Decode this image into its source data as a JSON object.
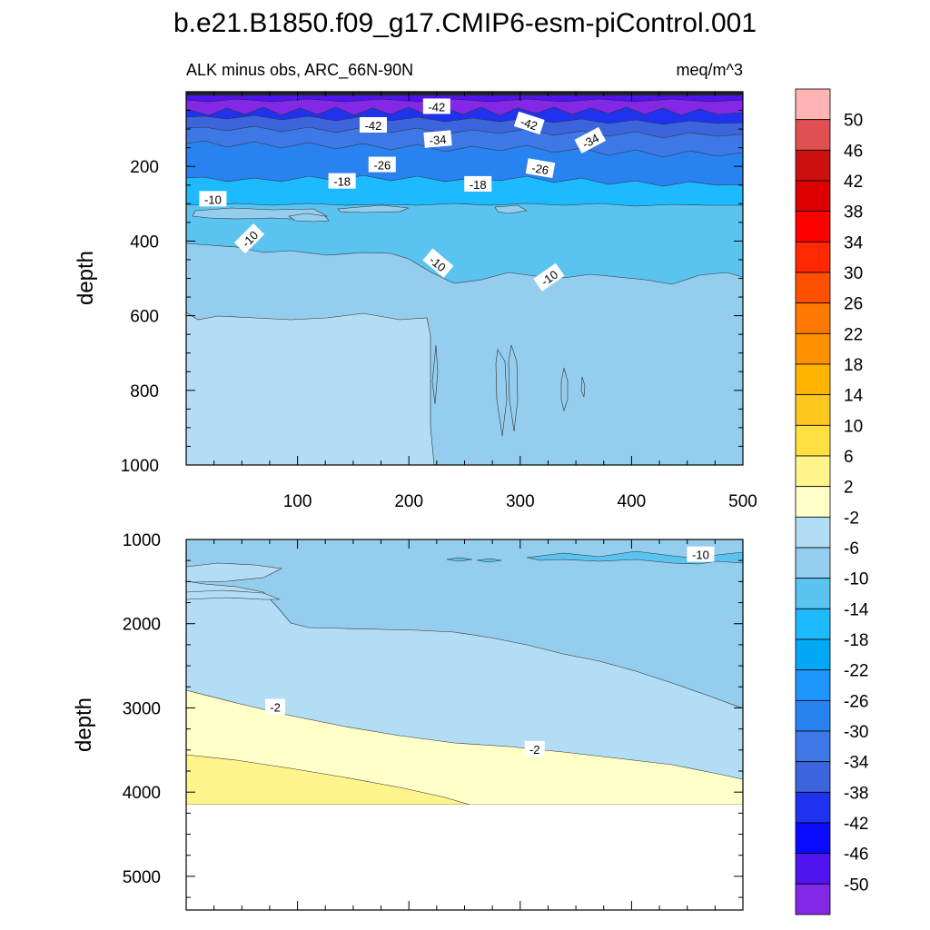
{
  "chart_data": [
    {
      "type": "heatmap",
      "panel": "upper",
      "title": "b.e21.B1850.f09_g17.CMIP6-esm-piControl.001",
      "subtitle_left": "ALK minus obs, ARC_66N-90N",
      "subtitle_right": "meq/m^3",
      "xlabel": "",
      "ylabel": "depth",
      "xlim": [
        0,
        500
      ],
      "ylim": [
        1000,
        0
      ],
      "x_ticks": [
        100,
        200,
        300,
        400,
        500
      ],
      "y_ticks": [
        200,
        400,
        600,
        800,
        1000
      ],
      "contour_labels": [
        {
          "x": 225,
          "y": 40,
          "text": "-42"
        },
        {
          "x": 168,
          "y": 90,
          "text": "-42"
        },
        {
          "x": 308,
          "y": 85,
          "text": "-42"
        },
        {
          "x": 226,
          "y": 128,
          "text": "-34"
        },
        {
          "x": 363,
          "y": 131,
          "text": "-34"
        },
        {
          "x": 176,
          "y": 196,
          "text": "-26"
        },
        {
          "x": 318,
          "y": 206,
          "text": "-26"
        },
        {
          "x": 140,
          "y": 240,
          "text": "-18"
        },
        {
          "x": 262,
          "y": 248,
          "text": "-18"
        },
        {
          "x": 24,
          "y": 288,
          "text": "-10"
        },
        {
          "x": 57,
          "y": 394,
          "text": "-10"
        },
        {
          "x": 226,
          "y": 460,
          "text": "-10"
        },
        {
          "x": 326,
          "y": 498,
          "text": "-10"
        }
      ],
      "bands": [
        {
          "level": -50,
          "from_depth": 0,
          "to_depth": 80
        },
        {
          "level": -42,
          "from_depth": 80,
          "to_depth": 120
        },
        {
          "level": -34,
          "from_depth": 120,
          "to_depth": 190
        },
        {
          "level": -26,
          "from_depth": 190,
          "to_depth": 240
        },
        {
          "level": -18,
          "from_depth": 240,
          "to_depth": 270
        },
        {
          "level": -14,
          "from_depth": 270,
          "to_depth": 420
        },
        {
          "level": -10,
          "from_depth": 420,
          "to_depth": 600
        },
        {
          "level": -6,
          "from_depth": 600,
          "to_depth": 1000
        }
      ]
    },
    {
      "type": "heatmap",
      "panel": "lower",
      "xlabel": "",
      "ylabel": "depth",
      "xlim": [
        0,
        500
      ],
      "ylim": [
        5400,
        1000
      ],
      "y_ticks": [
        1000,
        2000,
        3000,
        4000,
        5000
      ],
      "data_bottom": 4130,
      "contour_labels": [
        {
          "x": 80,
          "y": 2990,
          "text": "-2"
        },
        {
          "x": 313,
          "y": 3490,
          "text": "-2"
        },
        {
          "x": 462,
          "y": 1180,
          "text": "-10"
        }
      ],
      "bands": [
        {
          "level": -10,
          "region": "upper-right above 1600-2900 line"
        },
        {
          "level": -6,
          "region": "middle"
        },
        {
          "level": -2,
          "region": "below 2750-3850 line"
        },
        {
          "level": 2,
          "region": "bottom-left below 3550-4130 line"
        }
      ]
    }
  ],
  "colorbar": {
    "labels": [
      "50",
      "46",
      "42",
      "38",
      "34",
      "30",
      "26",
      "22",
      "18",
      "14",
      "10",
      "6",
      "2",
      "-2",
      "-6",
      "-10",
      "-14",
      "-18",
      "-22",
      "-26",
      "-30",
      "-34",
      "-38",
      "-42",
      "-46",
      "-50"
    ],
    "colors": [
      "#ffb3b3",
      "#e05050",
      "#cc1010",
      "#dd0000",
      "#ff0000",
      "#ff2800",
      "#ff5000",
      "#ff7800",
      "#ff9000",
      "#ffb400",
      "#ffc81e",
      "#ffe040",
      "#fff58c",
      "#ffffc8",
      "#b3ddf5",
      "#94cded",
      "#5bc3f0",
      "#1ebaff",
      "#00a8f5",
      "#1e96ff",
      "#2882f0",
      "#3c78e6",
      "#3c64dc",
      "#1e32f0",
      "#0a0aff",
      "#5014f0",
      "#8228e6"
    ]
  }
}
